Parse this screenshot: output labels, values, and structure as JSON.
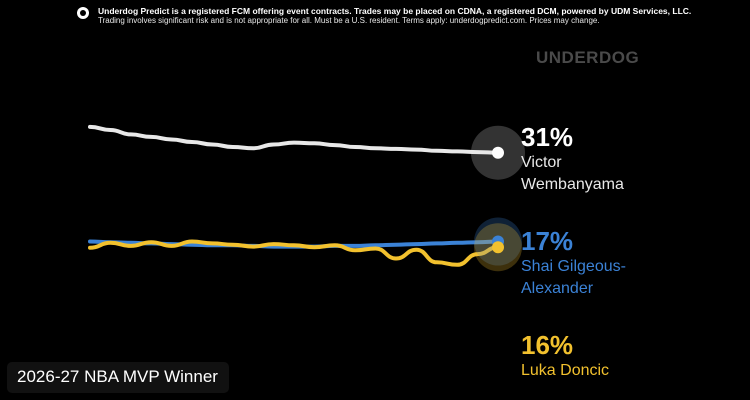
{
  "disclaimer": {
    "line1": "Underdog Predict is a registered FCM offering event contracts.  Trades may be placed on CDNA, a registered DCM, powered by UDM Services, LLC.",
    "line2": "Trading involves significant risk and is not appropriate for all.  Must be a U.S. resident. Terms apply: underdogpredict.com. Prices may change."
  },
  "brand": "UNDERDOG",
  "colors": {
    "background": "#000000",
    "wembanyama": "#e8e8e8",
    "sga": "#3b82d6",
    "doncic": "#f2c12e"
  },
  "chart_data": {
    "type": "line",
    "title": "2026-27 NBA MVP Winner",
    "xlabel": "",
    "ylabel": "",
    "ylim": [
      0,
      40
    ],
    "grid": false,
    "legend_placement": "right-end-labels",
    "series": [
      {
        "name": "Victor Wembanyama",
        "percent_label": "31%",
        "name_lines": [
          "Victor",
          "Wembanyama"
        ],
        "color": "#e8e8e8",
        "values": [
          35.1,
          34.6,
          33.9,
          33.5,
          33.1,
          32.7,
          32.3,
          31.9,
          31.7,
          32.3,
          32.6,
          32.5,
          32.2,
          31.9,
          31.7,
          31.6,
          31.5,
          31.3,
          31.2,
          31.1,
          31.0
        ]
      },
      {
        "name": "Shai Gilgeous-Alexander",
        "percent_label": "17%",
        "name_lines": [
          "Shai Gilgeous-",
          "Alexander"
        ],
        "color": "#3b82d6",
        "values": [
          16.9,
          16.8,
          16.7,
          16.6,
          16.5,
          16.4,
          16.3,
          16.3,
          16.2,
          16.1,
          16.1,
          16.1,
          16.2,
          16.2,
          16.3,
          16.4,
          16.5,
          16.6,
          16.7,
          16.8,
          16.9
        ]
      },
      {
        "name": "Luka Doncic",
        "percent_label": "16%",
        "name_lines": [
          "Luka Doncic"
        ],
        "color": "#f2c12e",
        "values": [
          15.9,
          16.7,
          16.2,
          16.8,
          16.2,
          16.9,
          16.6,
          16.4,
          16.1,
          16.5,
          16.3,
          16.0,
          16.3,
          15.5,
          15.8,
          14.2,
          15.6,
          13.6,
          13.2,
          14.9,
          16.0
        ]
      }
    ]
  }
}
